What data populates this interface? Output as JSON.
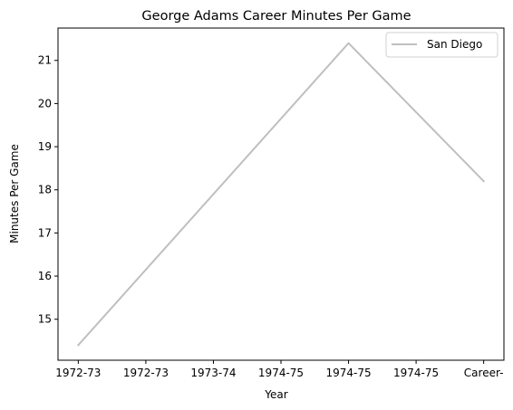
{
  "chart_data": {
    "type": "line",
    "title": "George Adams  Career Minutes Per Game",
    "xlabel": "Year",
    "ylabel": "Minutes Per Game",
    "categories": [
      "1972-73",
      "1972-73",
      "1973-74",
      "1974-75",
      "1974-75",
      "1974-75",
      "Career-"
    ],
    "x": [
      0,
      4,
      6
    ],
    "series": [
      {
        "name": "San Diego",
        "x": [
          0,
          4,
          6
        ],
        "values": [
          14.4,
          21.4,
          18.2
        ],
        "color": "#bfbfbf"
      }
    ],
    "xlim": [
      -0.3,
      6.3
    ],
    "ylim": [
      14.05,
      21.75
    ],
    "yticks": [
      15,
      16,
      17,
      18,
      19,
      20,
      21
    ],
    "grid": false,
    "legend_position": "top-right"
  }
}
